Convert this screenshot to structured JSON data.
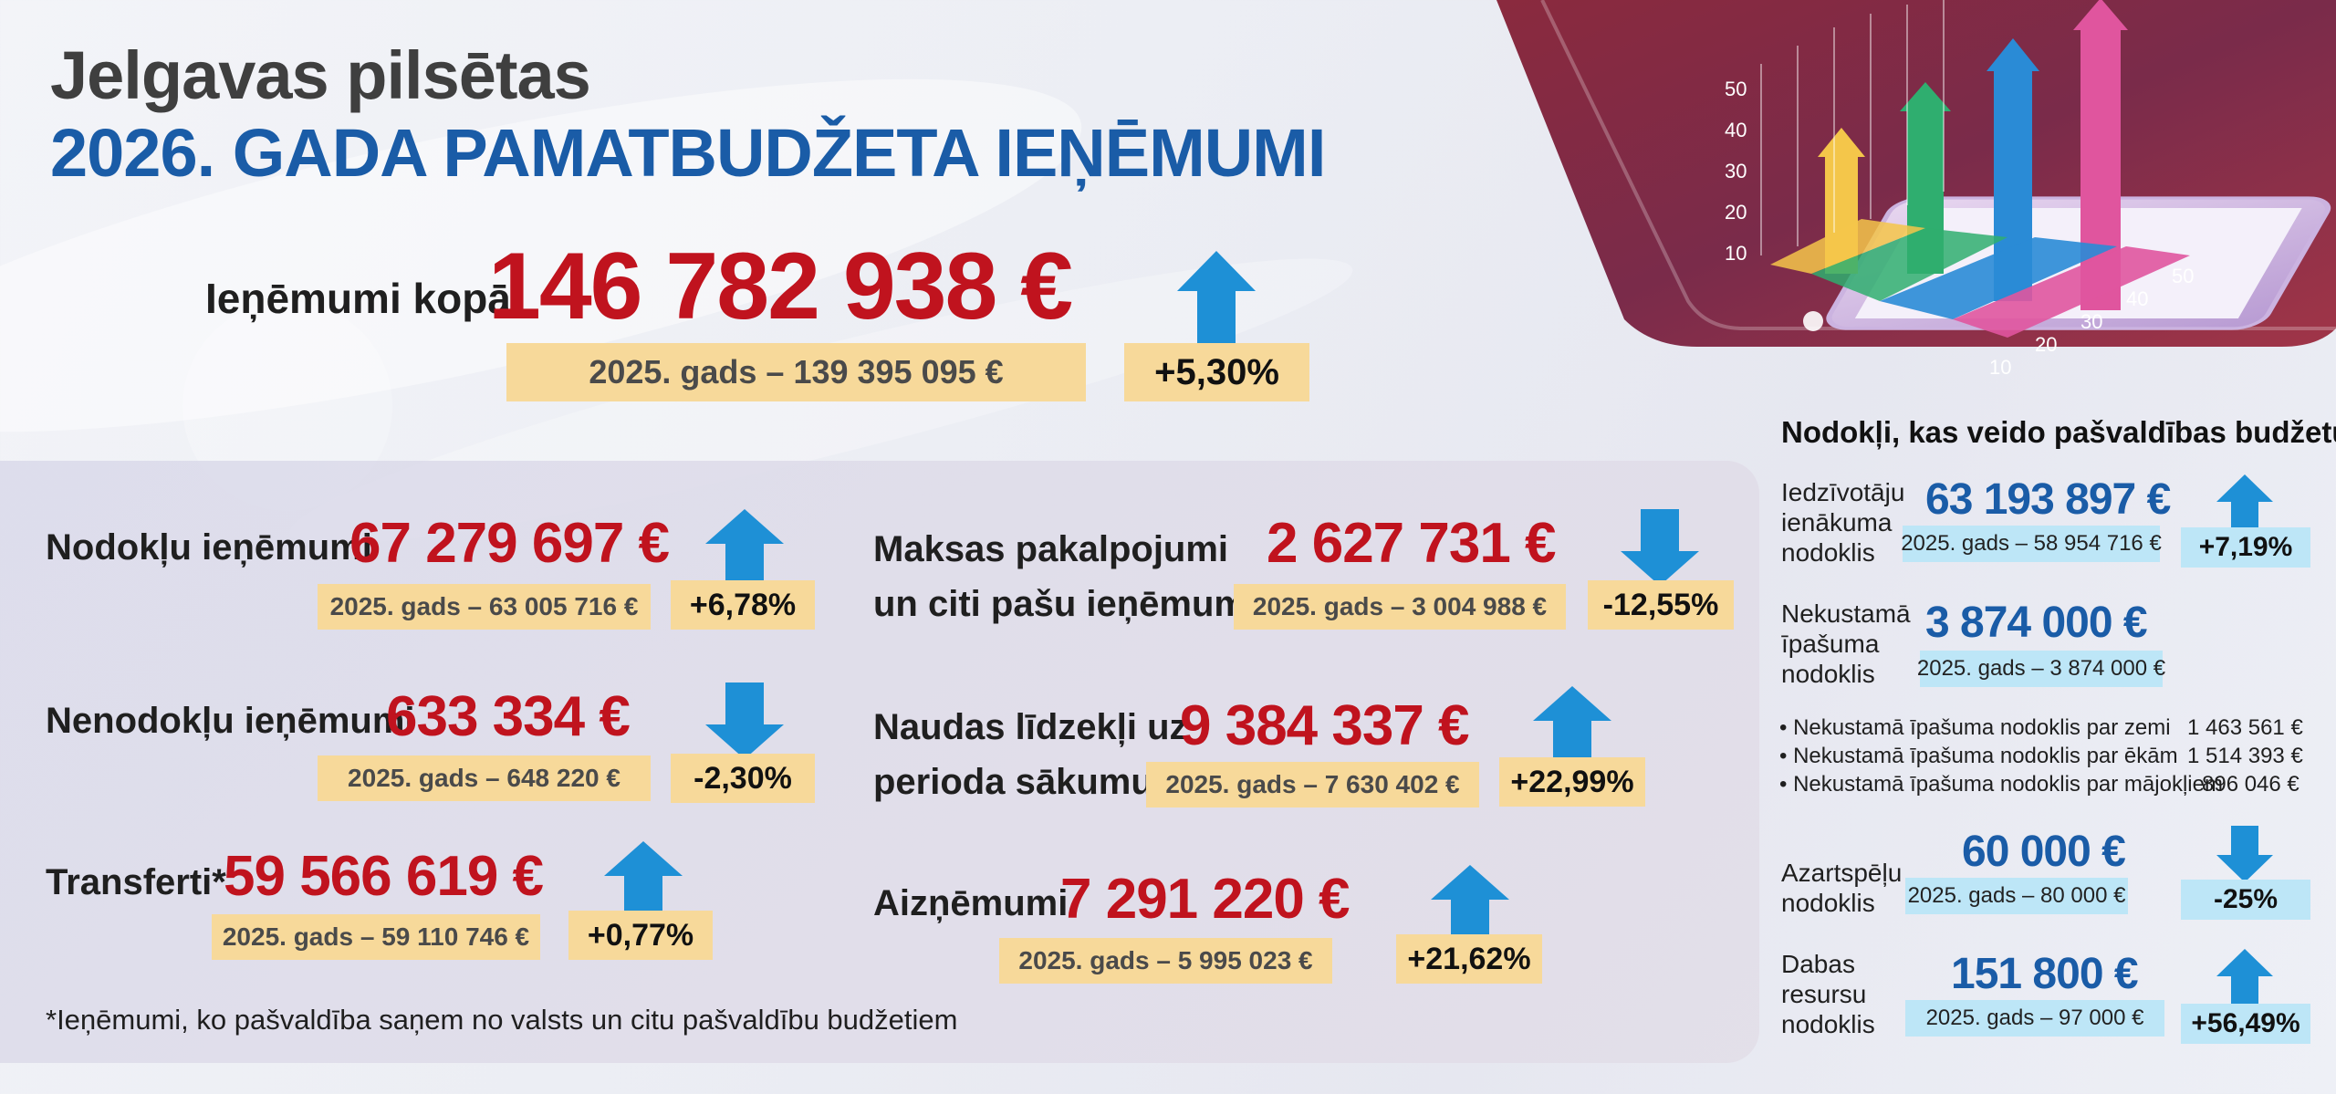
{
  "header": {
    "city": "Jelgavas pilsētas",
    "title": "2026. GADA PAMATBUDŽETA IEŅĒMUMI"
  },
  "total": {
    "label": "Ieņēmumi kopā",
    "value": "146 782 938 €",
    "previous": "2025. gads – 139 395 095 €",
    "change": "+5,30%",
    "direction": "up"
  },
  "items": {
    "tax": {
      "label": "Nodokļu ieņēmumi",
      "value": "67 279 697 €",
      "previous": "2025. gads – 63 005 716 €",
      "change": "+6,78%",
      "direction": "up"
    },
    "nontax": {
      "label": "Nenodokļu ieņēmumi",
      "value": "633 334 €",
      "previous": "2025. gads – 648 220 €",
      "change": "-2,30%",
      "direction": "down"
    },
    "transfers": {
      "label": "Transferti*",
      "value": "59 566 619 €",
      "previous": "2025. gads – 59 110 746 €",
      "change": "+0,77%",
      "direction": "up"
    },
    "paid": {
      "label_line1": "Maksas pakalpojumi",
      "label_line2": "un citi pašu ieņēmumi",
      "value": "2 627 731 €",
      "previous": "2025. gads – 3 004 988 €",
      "change": "-12,55%",
      "direction": "down"
    },
    "cash": {
      "label_line1": "Naudas līdzekļi uz",
      "label_line2": "perioda sākumu",
      "value": "9 384 337 €",
      "previous": "2025. gads – 7 630 402 €",
      "change": "+22,99%",
      "direction": "up"
    },
    "loans": {
      "label": "Aizņēmumi",
      "value": "7 291 220 €",
      "previous": "2025. gads – 5 995 023 €",
      "change": "+21,62%",
      "direction": "up"
    }
  },
  "footnote": "*Ieņēmumi, ko pašvaldība saņem no valsts un citu pašvaldību budžetiem",
  "taxes": {
    "heading": "Nodokļi, kas veido pašvaldības budžetu",
    "income": {
      "label_line1": "Iedzīvotāju",
      "label_line2": "ienākuma",
      "label_line3": "nodoklis",
      "value": "63 193 897 €",
      "previous": "2025. gads – 58 954 716 €",
      "change": "+7,19%",
      "direction": "up"
    },
    "property": {
      "label_line1": "Nekustamā",
      "label_line2": "īpašuma",
      "label_line3": "nodoklis",
      "value": "3 874 000 €",
      "previous": "2025. gads – 3 874 000 €"
    },
    "property_breakdown": [
      {
        "label": "• Nekustamā īpašuma nodoklis par zemi",
        "value": "1 463 561 €"
      },
      {
        "label": "• Nekustamā īpašuma nodoklis par ēkām",
        "value": "1 514 393 €"
      },
      {
        "label": "• Nekustamā īpašuma nodoklis par mājokļiem",
        "value": "896 046 €"
      }
    ],
    "gambling": {
      "label_line1": "Azartspēļu",
      "label_line2": "nodoklis",
      "value": "60 000 €",
      "previous": "2025. gads – 80 000 €",
      "change": "-25%",
      "direction": "down"
    },
    "natural": {
      "label_line1": "Dabas",
      "label_line2": "resursu",
      "label_line3": "nodoklis",
      "value": "151 800 €",
      "previous": "2025. gads – 97 000 €",
      "change": "+56,49%",
      "direction": "up"
    }
  },
  "graphic": {
    "y_ticks": [
      "10",
      "20",
      "30",
      "40",
      "50"
    ],
    "x_ticks": [
      "10",
      "20",
      "30",
      "40",
      "50"
    ],
    "colors": {
      "accent_red": "#c0131e",
      "accent_blue": "#1a5ca7",
      "arrow_blue": "#1e90d6",
      "highlight": "#f7d99a",
      "highlight_blue": "#bde6f7"
    }
  }
}
